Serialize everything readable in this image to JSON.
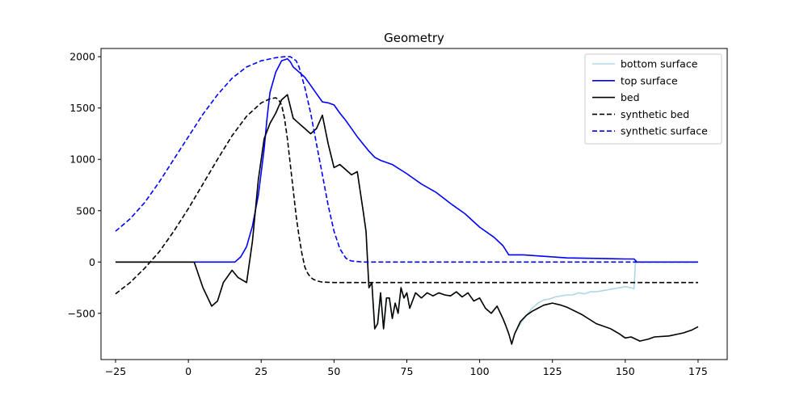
{
  "chart_data": {
    "type": "line",
    "title": "Geometry",
    "xlabel": "",
    "ylabel": "",
    "xlim": [
      -30,
      185
    ],
    "ylim": [
      -950,
      2080
    ],
    "xticks": [
      -25,
      0,
      25,
      50,
      75,
      100,
      125,
      150,
      175
    ],
    "yticks": [
      -500,
      0,
      500,
      1000,
      1500,
      2000
    ],
    "grid": false,
    "legend_position": "top-right",
    "series": [
      {
        "name": "bottom surface",
        "color": "#add8e6",
        "dash": "solid",
        "x": [
          -25,
          0,
          2,
          5,
          8,
          10,
          12,
          15,
          17,
          20,
          22,
          24,
          26,
          28,
          30,
          32,
          34,
          36,
          38,
          40,
          42,
          44,
          46,
          48,
          50,
          52,
          54,
          56,
          58,
          60,
          61,
          62,
          63,
          64,
          65,
          66,
          67,
          68,
          69,
          70,
          71,
          72,
          73,
          74,
          75,
          76,
          78,
          80,
          82,
          84,
          86,
          88,
          90,
          92,
          94,
          96,
          98,
          100,
          102,
          104,
          106,
          108,
          109,
          110,
          111,
          112,
          114,
          116,
          118,
          120,
          122,
          124,
          126,
          128,
          130,
          132,
          134,
          136,
          138,
          140,
          142,
          144,
          146,
          148,
          150,
          152,
          153,
          153.5,
          154,
          156,
          160,
          165,
          170,
          175
        ],
        "y": [
          0,
          0,
          0,
          -250,
          -430,
          -380,
          -200,
          -80,
          -150,
          -200,
          200,
          800,
          1200,
          1350,
          1450,
          1580,
          1630,
          1400,
          1350,
          1300,
          1250,
          1300,
          1430,
          1150,
          920,
          950,
          900,
          850,
          880,
          500,
          300,
          -250,
          -200,
          -650,
          -600,
          -300,
          -650,
          -350,
          -350,
          -550,
          -400,
          -500,
          -250,
          -350,
          -300,
          -450,
          -300,
          -350,
          -300,
          -330,
          -300,
          -320,
          -330,
          -290,
          -340,
          -300,
          -380,
          -350,
          -450,
          -500,
          -430,
          -550,
          -620,
          -700,
          -800,
          -700,
          -600,
          -520,
          -450,
          -400,
          -370,
          -360,
          -340,
          -330,
          -320,
          -320,
          -300,
          -310,
          -290,
          -290,
          -280,
          -270,
          -260,
          -250,
          -240,
          -250,
          -260,
          0,
          0,
          0,
          0,
          0,
          0,
          0
        ]
      },
      {
        "name": "top surface",
        "color": "#0000ff",
        "dash": "solid",
        "x": [
          -25,
          0,
          5,
          10,
          15,
          16,
          18,
          20,
          22,
          24,
          26,
          27,
          28,
          30,
          32,
          34,
          35,
          36,
          38,
          40,
          42,
          44,
          46,
          48,
          50,
          52,
          54,
          56,
          58,
          60,
          62,
          64,
          66,
          70,
          75,
          80,
          85,
          90,
          95,
          100,
          105,
          108,
          110,
          115,
          120,
          125,
          130,
          140,
          150,
          153,
          154,
          160,
          175
        ],
        "y": [
          0,
          0,
          0,
          0,
          0,
          0,
          50,
          150,
          350,
          650,
          1100,
          1400,
          1650,
          1850,
          1960,
          1980,
          1950,
          1900,
          1850,
          1800,
          1720,
          1640,
          1560,
          1550,
          1530,
          1450,
          1380,
          1300,
          1220,
          1150,
          1080,
          1020,
          990,
          950,
          860,
          760,
          680,
          570,
          470,
          340,
          240,
          160,
          70,
          70,
          60,
          50,
          40,
          35,
          30,
          30,
          0,
          0,
          0
        ]
      },
      {
        "name": "bed",
        "color": "#000000",
        "dash": "solid",
        "x": [
          -25,
          0,
          2,
          5,
          8,
          10,
          12,
          15,
          17,
          20,
          22,
          24,
          26,
          28,
          30,
          32,
          34,
          36,
          38,
          40,
          42,
          44,
          46,
          48,
          50,
          52,
          54,
          56,
          58,
          60,
          61,
          62,
          63,
          64,
          65,
          66,
          67,
          68,
          69,
          70,
          71,
          72,
          73,
          74,
          75,
          76,
          78,
          80,
          82,
          84,
          86,
          88,
          90,
          92,
          94,
          96,
          98,
          100,
          102,
          104,
          106,
          108,
          109,
          110,
          111,
          112,
          114,
          116,
          118,
          120,
          122,
          125,
          128,
          130,
          135,
          140,
          145,
          148,
          150,
          152,
          155,
          158,
          160,
          165,
          170,
          173,
          175
        ],
        "y": [
          0,
          0,
          0,
          -250,
          -430,
          -380,
          -200,
          -80,
          -150,
          -200,
          200,
          800,
          1200,
          1350,
          1450,
          1580,
          1630,
          1400,
          1350,
          1300,
          1250,
          1300,
          1430,
          1150,
          920,
          950,
          900,
          850,
          880,
          500,
          300,
          -250,
          -200,
          -650,
          -600,
          -300,
          -650,
          -350,
          -350,
          -550,
          -400,
          -500,
          -250,
          -350,
          -300,
          -450,
          -300,
          -350,
          -300,
          -330,
          -300,
          -320,
          -330,
          -290,
          -340,
          -300,
          -380,
          -350,
          -450,
          -500,
          -430,
          -550,
          -620,
          -700,
          -800,
          -700,
          -580,
          -520,
          -480,
          -450,
          -420,
          -400,
          -420,
          -440,
          -510,
          -600,
          -650,
          -700,
          -740,
          -730,
          -770,
          -750,
          -730,
          -720,
          -690,
          -660,
          -630
        ]
      },
      {
        "name": "synthetic bed",
        "color": "#000000",
        "dash": "dashed",
        "x": [
          -25,
          -20,
          -15,
          -10,
          -5,
          0,
          5,
          10,
          15,
          20,
          25,
          28,
          30,
          31,
          32,
          33,
          34,
          35,
          36,
          37,
          38,
          39,
          40,
          41,
          42,
          43,
          44,
          45,
          46,
          48,
          50,
          60,
          80,
          100,
          120,
          140,
          160,
          175
        ],
        "y": [
          -310,
          -200,
          -60,
          100,
          300,
          520,
          760,
          1000,
          1230,
          1420,
          1550,
          1590,
          1600,
          1580,
          1530,
          1400,
          1200,
          950,
          700,
          450,
          250,
          80,
          -50,
          -110,
          -150,
          -170,
          -180,
          -190,
          -195,
          -198,
          -200,
          -200,
          -200,
          -200,
          -200,
          -200,
          -200,
          -200
        ]
      },
      {
        "name": "synthetic surface",
        "color": "#0000ff",
        "dash": "dashed",
        "x": [
          -25,
          -20,
          -15,
          -10,
          -5,
          0,
          5,
          10,
          15,
          20,
          25,
          30,
          33,
          35,
          37,
          38,
          40,
          42,
          44,
          46,
          48,
          50,
          52,
          54,
          55,
          56,
          58,
          60,
          80,
          100,
          120,
          140,
          160,
          175
        ],
        "y": [
          300,
          420,
          580,
          780,
          1000,
          1220,
          1440,
          1630,
          1790,
          1900,
          1960,
          1990,
          2000,
          2000,
          1960,
          1900,
          1700,
          1450,
          1150,
          850,
          550,
          300,
          130,
          40,
          20,
          10,
          5,
          0,
          0,
          0,
          0,
          0,
          0,
          0
        ]
      }
    ]
  }
}
